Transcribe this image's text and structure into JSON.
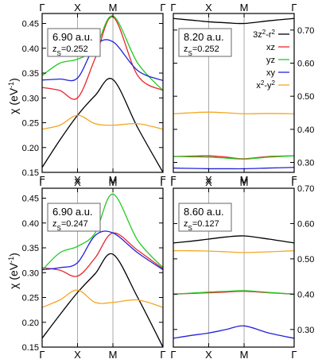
{
  "figure": {
    "ylabel": "χ (eV",
    "ylabel_sup": "-1",
    "ylabel_close": ")"
  },
  "chart_data": [
    {
      "type": "line",
      "x_ticks": [
        "Γ",
        "X",
        "M",
        "Γ"
      ],
      "x_tick_positions": [
        0,
        1,
        2,
        3.414
      ],
      "x_path": [
        0,
        0.5,
        1,
        1.5,
        2,
        2.7,
        3.414
      ],
      "ylim": [
        0.15,
        0.47
      ],
      "y_ticks": [
        0.15,
        0.2,
        0.25,
        0.3,
        0.35,
        0.4,
        0.45
      ],
      "y_axis_side": "left",
      "annotation": {
        "main": "6.90 a.u.",
        "sub_prefix": "z",
        "sub_subscript": "S",
        "sub_value": "=0.252"
      },
      "series": [
        {
          "key": "3z2-r2",
          "color": "#000000",
          "values": [
            0.16,
            0.215,
            0.265,
            0.305,
            0.337,
            0.24,
            0.15
          ]
        },
        {
          "key": "xz",
          "color": "#e8262b",
          "values": [
            0.321,
            0.315,
            0.3,
            0.38,
            0.463,
            0.345,
            0.315
          ]
        },
        {
          "key": "yz",
          "color": "#22cc22",
          "values": [
            0.345,
            0.37,
            0.378,
            0.4,
            0.465,
            0.37,
            0.315
          ]
        },
        {
          "key": "xy",
          "color": "#2222dd",
          "values": [
            0.336,
            0.338,
            0.34,
            0.405,
            0.413,
            0.355,
            0.335
          ]
        },
        {
          "key": "x2-y2",
          "color": "#f5a623",
          "values": [
            0.237,
            0.245,
            0.265,
            0.248,
            0.245,
            0.248,
            0.237
          ]
        }
      ]
    },
    {
      "type": "line",
      "x_ticks": [
        "Γ",
        "X",
        "M",
        "Γ"
      ],
      "x_tick_positions": [
        0,
        1,
        2,
        3.414
      ],
      "x_path": [
        0,
        0.5,
        1,
        1.5,
        2,
        2.7,
        3.414
      ],
      "ylim": [
        0.27,
        0.75
      ],
      "y_ticks": [
        0.3,
        0.4,
        0.5,
        0.6,
        0.7
      ],
      "y_axis_side": "right",
      "annotation": {
        "main": "8.20 a.u.",
        "sub_prefix": "z",
        "sub_subscript": "S",
        "sub_value": "=0.252"
      },
      "legend": {
        "position": "top-right",
        "entries": [
          {
            "key": "3z2-r2",
            "base": "3z",
            "sup": "2",
            "mid": "-r",
            "sup2": "2",
            "color": "#000000"
          },
          {
            "key": "xz",
            "base": "xz",
            "sup": "",
            "mid": "",
            "sup2": "",
            "color": "#e8262b"
          },
          {
            "key": "yz",
            "base": "yz",
            "sup": "",
            "mid": "",
            "sup2": "",
            "color": "#22cc22"
          },
          {
            "key": "xy",
            "base": "xy",
            "sup": "",
            "mid": "",
            "sup2": "",
            "color": "#2222dd"
          },
          {
            "key": "x2-y2",
            "base": "x",
            "sup": "2",
            "mid": "-y",
            "sup2": "2",
            "color": "#f5a623"
          }
        ]
      },
      "series": [
        {
          "key": "3z2-r2",
          "color": "#000000",
          "values": [
            0.735,
            0.73,
            0.725,
            0.722,
            0.72,
            0.728,
            0.735
          ]
        },
        {
          "key": "xz",
          "color": "#e8262b",
          "values": [
            0.318,
            0.319,
            0.32,
            0.316,
            0.311,
            0.318,
            0.32
          ]
        },
        {
          "key": "yz",
          "color": "#22cc22",
          "values": [
            0.318,
            0.317,
            0.316,
            0.313,
            0.31,
            0.316,
            0.32
          ]
        },
        {
          "key": "xy",
          "color": "#2222dd",
          "values": [
            0.283,
            0.282,
            0.281,
            0.281,
            0.281,
            0.283,
            0.285
          ]
        },
        {
          "key": "x2-y2",
          "color": "#f5a623",
          "values": [
            0.447,
            0.45,
            0.452,
            0.45,
            0.447,
            0.448,
            0.447
          ]
        }
      ]
    },
    {
      "type": "line",
      "x_ticks": [
        "Γ",
        "X",
        "M",
        "Γ"
      ],
      "x_tick_positions": [
        0,
        1,
        2,
        3.414
      ],
      "x_path": [
        0,
        0.5,
        1,
        1.5,
        2,
        2.7,
        3.414
      ],
      "ylim": [
        0.15,
        0.47
      ],
      "y_ticks": [
        0.15,
        0.2,
        0.25,
        0.3,
        0.35,
        0.4,
        0.45
      ],
      "y_axis_side": "left",
      "annotation": {
        "main": "6.90 a.u.",
        "sub_prefix": "z",
        "sub_subscript": "S",
        "sub_value": "=0.247"
      },
      "series": [
        {
          "key": "3z2-r2",
          "color": "#000000",
          "values": [
            0.168,
            0.215,
            0.26,
            0.298,
            0.337,
            0.25,
            0.15
          ]
        },
        {
          "key": "xz",
          "color": "#e8262b",
          "values": [
            0.31,
            0.305,
            0.293,
            0.33,
            0.38,
            0.345,
            0.308
          ]
        },
        {
          "key": "yz",
          "color": "#22cc22",
          "values": [
            0.305,
            0.34,
            0.353,
            0.38,
            0.458,
            0.365,
            0.31
          ]
        },
        {
          "key": "xy",
          "color": "#2222dd",
          "values": [
            0.306,
            0.31,
            0.32,
            0.375,
            0.38,
            0.34,
            0.306
          ]
        },
        {
          "key": "x2-y2",
          "color": "#f5a623",
          "values": [
            0.23,
            0.245,
            0.265,
            0.24,
            0.24,
            0.245,
            0.23
          ]
        }
      ]
    },
    {
      "type": "line",
      "x_ticks": [
        "Γ",
        "X",
        "M",
        "Γ"
      ],
      "x_tick_positions": [
        0,
        1,
        2,
        3.414
      ],
      "x_path": [
        0,
        0.5,
        1,
        1.5,
        2,
        2.7,
        3.414
      ],
      "ylim": [
        0.25,
        0.7
      ],
      "y_ticks": [
        0.3,
        0.4,
        0.5,
        0.6,
        0.7
      ],
      "y_axis_side": "right",
      "annotation": {
        "main": "8.60 a.u.",
        "sub_prefix": "z",
        "sub_subscript": "S",
        "sub_value": "=0.127"
      },
      "series": [
        {
          "key": "3z2-r2",
          "color": "#000000",
          "values": [
            0.545,
            0.55,
            0.556,
            0.562,
            0.565,
            0.556,
            0.545
          ]
        },
        {
          "key": "xz",
          "color": "#e8262b",
          "values": [
            0.4,
            0.402,
            0.404,
            0.406,
            0.408,
            0.404,
            0.4
          ]
        },
        {
          "key": "yz",
          "color": "#22cc22",
          "values": [
            0.4,
            0.403,
            0.406,
            0.408,
            0.41,
            0.405,
            0.4
          ]
        },
        {
          "key": "xy",
          "color": "#2222dd",
          "values": [
            0.275,
            0.283,
            0.29,
            0.3,
            0.31,
            0.29,
            0.275
          ]
        },
        {
          "key": "x2-y2",
          "color": "#f5a623",
          "values": [
            0.523,
            0.523,
            0.522,
            0.52,
            0.518,
            0.52,
            0.523
          ]
        }
      ]
    }
  ]
}
